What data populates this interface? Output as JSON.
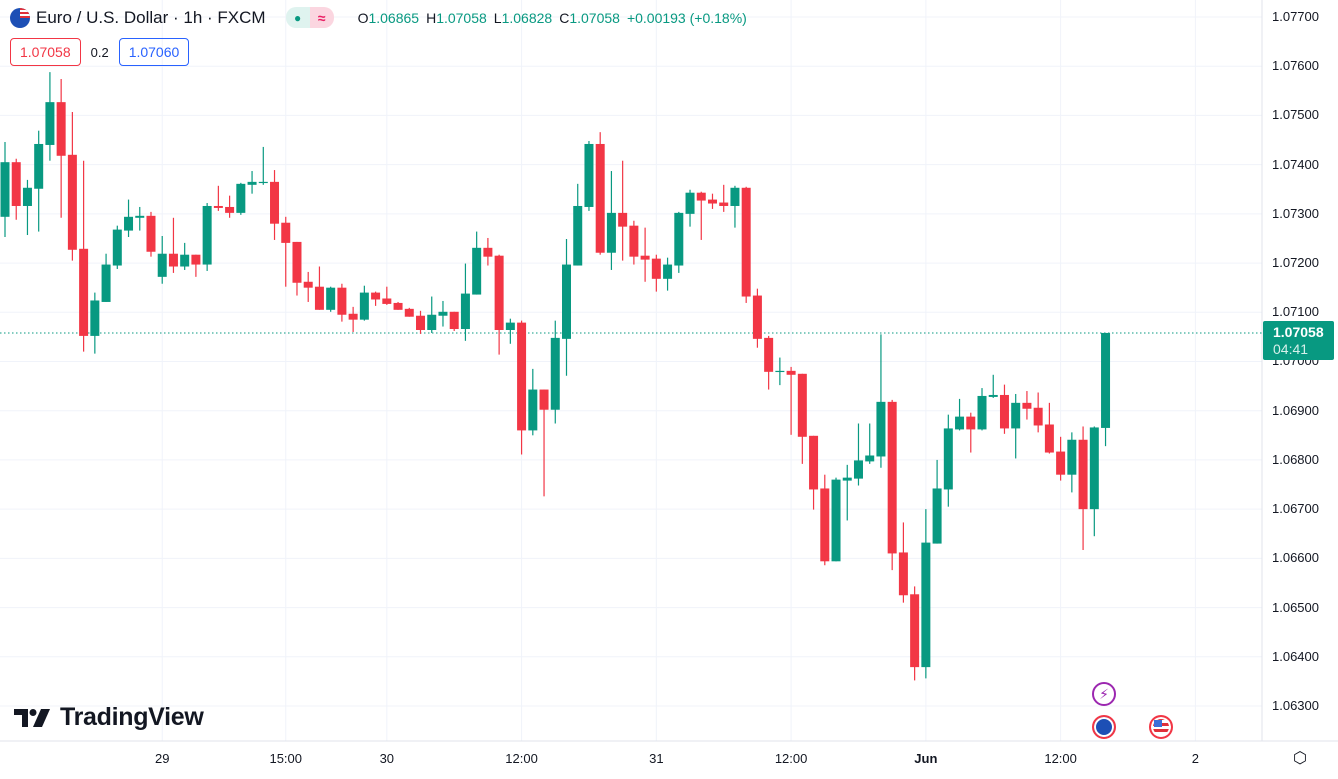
{
  "header": {
    "symbol_title": "Euro / U.S. Dollar · 1h · FXCM",
    "status_market": "●",
    "status_delay": "≈",
    "ohlc": {
      "o_label": "O",
      "o": "1.06865",
      "h_label": "H",
      "h": "1.07058",
      "l_label": "L",
      "l": "1.06828",
      "c_label": "C",
      "c": "1.07058",
      "change": "+0.00193 (+0.18%)"
    },
    "sell_price": "1.07058",
    "spread": "0.2",
    "buy_price": "1.07060"
  },
  "current_price": {
    "value": "1.07058",
    "countdown": "04:41"
  },
  "logo": "TradingView",
  "colors": {
    "up": "#089981",
    "down": "#f23645",
    "grid": "#f0f3fa",
    "price_line": "#089981"
  },
  "chart_data": {
    "type": "candlestick",
    "title": "Euro / U.S. Dollar · 1h · FXCM",
    "ylim": [
      1.0625,
      1.07735
    ],
    "price_ticks": [
      "1.07700",
      "1.07600",
      "1.07500",
      "1.07400",
      "1.07300",
      "1.07200",
      "1.07100",
      "1.07000",
      "1.06900",
      "1.06800",
      "1.06700",
      "1.06600",
      "1.06500",
      "1.06400",
      "1.06300"
    ],
    "time_ticks": [
      {
        "label": "29",
        "bar": 14,
        "bold": false
      },
      {
        "label": "15:00",
        "bar": 25,
        "bold": false
      },
      {
        "label": "30",
        "bar": 34,
        "bold": false
      },
      {
        "label": "12:00",
        "bar": 46,
        "bold": false
      },
      {
        "label": "31",
        "bar": 58,
        "bold": false
      },
      {
        "label": "12:00",
        "bar": 70,
        "bold": false
      },
      {
        "label": "Jun",
        "bar": 82,
        "bold": true
      },
      {
        "label": "12:00",
        "bar": 94,
        "bold": false
      },
      {
        "label": "2",
        "bar": 106,
        "bold": false
      }
    ],
    "last_price": 1.07058,
    "candles_ohlc": [
      [
        1.07294,
        1.07446,
        1.07253,
        1.07405
      ],
      [
        1.07405,
        1.07412,
        1.07288,
        1.07316
      ],
      [
        1.07316,
        1.07369,
        1.07257,
        1.07353
      ],
      [
        1.07351,
        1.07469,
        1.07264,
        1.07442
      ],
      [
        1.0744,
        1.07588,
        1.07408,
        1.07527
      ],
      [
        1.07527,
        1.07574,
        1.07292,
        1.07418
      ],
      [
        1.0742,
        1.07507,
        1.07205,
        1.07227
      ],
      [
        1.07229,
        1.07408,
        1.0702,
        1.07052
      ],
      [
        1.07052,
        1.0714,
        1.07016,
        1.07124
      ],
      [
        1.07121,
        1.07219,
        1.07121,
        1.07197
      ],
      [
        1.07195,
        1.07276,
        1.07188,
        1.07268
      ],
      [
        1.07266,
        1.07329,
        1.07253,
        1.07294
      ],
      [
        1.07292,
        1.07314,
        1.07266,
        1.07296
      ],
      [
        1.07296,
        1.07304,
        1.07213,
        1.07223
      ],
      [
        1.07172,
        1.07255,
        1.07158,
        1.07219
      ],
      [
        1.07219,
        1.07292,
        1.0718,
        1.07193
      ],
      [
        1.07193,
        1.07241,
        1.07186,
        1.07217
      ],
      [
        1.07217,
        1.07217,
        1.07172,
        1.07197
      ],
      [
        1.07197,
        1.07322,
        1.07184,
        1.07316
      ],
      [
        1.07316,
        1.07357,
        1.07306,
        1.07312
      ],
      [
        1.07314,
        1.07337,
        1.07292,
        1.07302
      ],
      [
        1.07302,
        1.07363,
        1.07298,
        1.07361
      ],
      [
        1.07359,
        1.07387,
        1.07341,
        1.07365
      ],
      [
        1.07363,
        1.07436,
        1.07359,
        1.07365
      ],
      [
        1.07365,
        1.07389,
        1.07247,
        1.0728
      ],
      [
        1.07282,
        1.07294,
        1.07152,
        1.07241
      ],
      [
        1.07243,
        1.07243,
        1.07134,
        1.0716
      ],
      [
        1.07162,
        1.07182,
        1.07121,
        1.0715
      ],
      [
        1.07152,
        1.07193,
        1.07105,
        1.07105
      ],
      [
        1.07105,
        1.07152,
        1.07101,
        1.0715
      ],
      [
        1.0715,
        1.07158,
        1.07081,
        1.07095
      ],
      [
        1.07097,
        1.07111,
        1.0706,
        1.07085
      ],
      [
        1.07085,
        1.07154,
        1.07083,
        1.0714
      ],
      [
        1.0714,
        1.07142,
        1.07113,
        1.07126
      ],
      [
        1.07128,
        1.07152,
        1.07115,
        1.07117
      ],
      [
        1.07119,
        1.07121,
        1.07105,
        1.07105
      ],
      [
        1.07107,
        1.07109,
        1.07091,
        1.07091
      ],
      [
        1.07093,
        1.07103,
        1.07056,
        1.07064
      ],
      [
        1.07064,
        1.07132,
        1.07058,
        1.07095
      ],
      [
        1.07093,
        1.07123,
        1.07071,
        1.07101
      ],
      [
        1.07101,
        1.07101,
        1.07062,
        1.07066
      ],
      [
        1.07066,
        1.07199,
        1.07042,
        1.07138
      ],
      [
        1.07136,
        1.07264,
        1.07136,
        1.07231
      ],
      [
        1.07231,
        1.07251,
        1.07195,
        1.07213
      ],
      [
        1.07215,
        1.07217,
        1.07014,
        1.07064
      ],
      [
        1.07064,
        1.07087,
        1.07036,
        1.07079
      ],
      [
        1.07079,
        1.07083,
        1.06811,
        1.0686
      ],
      [
        1.0686,
        1.06985,
        1.0685,
        1.06943
      ],
      [
        1.06943,
        1.06943,
        1.06726,
        1.06902
      ],
      [
        1.06902,
        1.07083,
        1.06874,
        1.07048
      ],
      [
        1.07046,
        1.07249,
        1.06971,
        1.07197
      ],
      [
        1.07195,
        1.07361,
        1.07195,
        1.07316
      ],
      [
        1.07314,
        1.07448,
        1.07306,
        1.07442
      ],
      [
        1.07442,
        1.07466,
        1.07217,
        1.07221
      ],
      [
        1.07221,
        1.07387,
        1.07186,
        1.07302
      ],
      [
        1.07302,
        1.07408,
        1.07205,
        1.07274
      ],
      [
        1.07276,
        1.07286,
        1.07197,
        1.07213
      ],
      [
        1.07215,
        1.07272,
        1.07162,
        1.07207
      ],
      [
        1.07209,
        1.07217,
        1.07142,
        1.07168
      ],
      [
        1.07168,
        1.07211,
        1.07144,
        1.07197
      ],
      [
        1.07195,
        1.07304,
        1.0718,
        1.07302
      ],
      [
        1.073,
        1.07349,
        1.07274,
        1.07343
      ],
      [
        1.07343,
        1.07345,
        1.07247,
        1.07327
      ],
      [
        1.07329,
        1.07341,
        1.0731,
        1.07321
      ],
      [
        1.07323,
        1.07359,
        1.07304,
        1.07316
      ],
      [
        1.07316,
        1.07357,
        1.07272,
        1.07353
      ],
      [
        1.07353,
        1.07355,
        1.07119,
        1.07132
      ],
      [
        1.07134,
        1.07148,
        1.07028,
        1.07046
      ],
      [
        1.07048,
        1.07052,
        1.06943,
        1.06979
      ],
      [
        1.06979,
        1.07008,
        1.06952,
        1.06981
      ],
      [
        1.06981,
        1.06989,
        1.06851,
        1.06973
      ],
      [
        1.06975,
        1.06975,
        1.06792,
        1.06847
      ],
      [
        1.06849,
        1.06849,
        1.06699,
        1.0674
      ],
      [
        1.06742,
        1.0677,
        1.06586,
        1.06594
      ],
      [
        1.06594,
        1.06764,
        1.06594,
        1.0676
      ],
      [
        1.06758,
        1.0679,
        1.06677,
        1.06764
      ],
      [
        1.06762,
        1.06874,
        1.06748,
        1.06799
      ],
      [
        1.06797,
        1.06874,
        1.06792,
        1.06809
      ],
      [
        1.06807,
        1.07055,
        1.06784,
        1.06918
      ],
      [
        1.06918,
        1.06922,
        1.06576,
        1.0661
      ],
      [
        1.06612,
        1.06673,
        1.0651,
        1.06525
      ],
      [
        1.06527,
        1.06543,
        1.06352,
        1.06379
      ],
      [
        1.06379,
        1.067,
        1.06356,
        1.06632
      ],
      [
        1.0663,
        1.068,
        1.0663,
        1.06742
      ],
      [
        1.0674,
        1.06892,
        1.06705,
        1.06864
      ],
      [
        1.06862,
        1.06924,
        1.0686,
        1.06888
      ],
      [
        1.06888,
        1.06896,
        1.06815,
        1.06862
      ],
      [
        1.06862,
        1.06946,
        1.0686,
        1.0693
      ],
      [
        1.06928,
        1.06973,
        1.06926,
        1.06932
      ],
      [
        1.06932,
        1.06953,
        1.06853,
        1.06864
      ],
      [
        1.06864,
        1.06934,
        1.06803,
        1.06916
      ],
      [
        1.06916,
        1.0694,
        1.06882,
        1.06904
      ],
      [
        1.06906,
        1.06937,
        1.06856,
        1.0687
      ],
      [
        1.06872,
        1.06916,
        1.06813,
        1.06815
      ],
      [
        1.06817,
        1.06847,
        1.06758,
        1.0677
      ],
      [
        1.0677,
        1.06856,
        1.06734,
        1.06841
      ],
      [
        1.06841,
        1.06868,
        1.06617,
        1.067
      ],
      [
        1.067,
        1.06868,
        1.06645,
        1.06866
      ],
      [
        1.06865,
        1.07058,
        1.06828,
        1.07058
      ]
    ]
  }
}
